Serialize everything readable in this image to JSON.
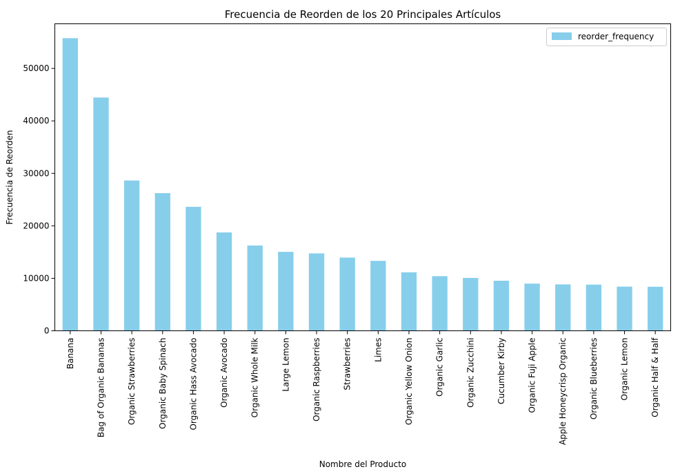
{
  "chart_data": {
    "type": "bar",
    "title": "Frecuencia de Reorden de los 20 Principales Artículos",
    "xlabel": "Nombre del Producto",
    "ylabel": "Frecuencia de Reorden",
    "ylim": [
      0,
      58500
    ],
    "yticks": [
      0,
      10000,
      20000,
      30000,
      40000,
      50000
    ],
    "ytick_labels": [
      "0",
      "10000",
      "20000",
      "30000",
      "40000",
      "50000"
    ],
    "grid": false,
    "legend_position": "top-right",
    "bar_color": "#87CEEB",
    "categories": [
      "Banana",
      "Bag of Organic Bananas",
      "Organic Strawberries",
      "Organic Baby Spinach",
      "Organic Hass Avocado",
      "Organic Avocado",
      "Organic Whole Milk",
      "Large Lemon",
      "Organic Raspberries",
      "Strawberries",
      "Limes",
      "Organic Yellow Onion",
      "Organic Garlic",
      "Organic Zucchini",
      "Cucumber Kirby",
      "Organic Fuji Apple",
      "Apple Honeycrisp Organic",
      "Organic Blueberries",
      "Organic Lemon",
      "Organic Half & Half"
    ],
    "series": [
      {
        "name": "reorder_frequency",
        "values": [
          55763,
          44450,
          28639,
          26233,
          23629,
          18743,
          16251,
          15044,
          14748,
          13945,
          13327,
          11145,
          10411,
          10076,
          9538,
          8989,
          8836,
          8799,
          8412,
          8389
        ]
      }
    ]
  }
}
